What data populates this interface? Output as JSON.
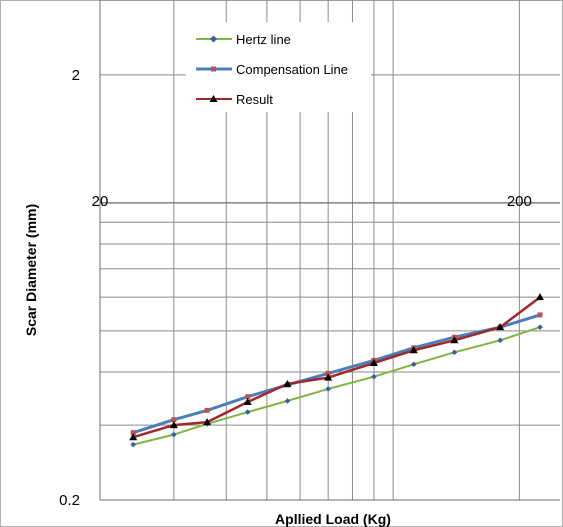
{
  "chart_data": {
    "type": "line",
    "title": "",
    "xlabel": "Apllied Load (Kg)",
    "ylabel": "Scar Diameter (mm)",
    "x_scale": "log",
    "y_scale": "log",
    "xlim": [
      20,
      250
    ],
    "ylim": [
      0.2,
      3
    ],
    "x_tick_labels": [
      {
        "value": 20,
        "label": "20"
      },
      {
        "value": 200,
        "label": "200"
      }
    ],
    "y_tick_labels": [
      {
        "value": 2,
        "label": "2"
      },
      {
        "value": 0.2,
        "label": "0.2"
      }
    ],
    "grid": true,
    "legend_position": "top-center",
    "x": [
      24,
      30,
      36,
      45,
      56,
      70,
      90,
      112,
      140,
      180,
      224
    ],
    "series": [
      {
        "name": "Hertz line",
        "color": "#7fb640",
        "marker": "diamond",
        "values": [
          0.27,
          0.285,
          0.302,
          0.322,
          0.342,
          0.365,
          0.39,
          0.417,
          0.445,
          0.475,
          0.51
        ]
      },
      {
        "name": "Compensation Line",
        "color": "#4a7ebb",
        "marker": "square",
        "values": [
          0.288,
          0.309,
          0.325,
          0.35,
          0.373,
          0.397,
          0.426,
          0.456,
          0.483,
          0.51,
          0.545
        ]
      },
      {
        "name": "Result",
        "color": "#a0282a",
        "marker": "triangle",
        "values": [
          0.281,
          0.3,
          0.305,
          0.34,
          0.375,
          0.388,
          0.42,
          0.45,
          0.475,
          0.51,
          0.6
        ]
      }
    ]
  }
}
